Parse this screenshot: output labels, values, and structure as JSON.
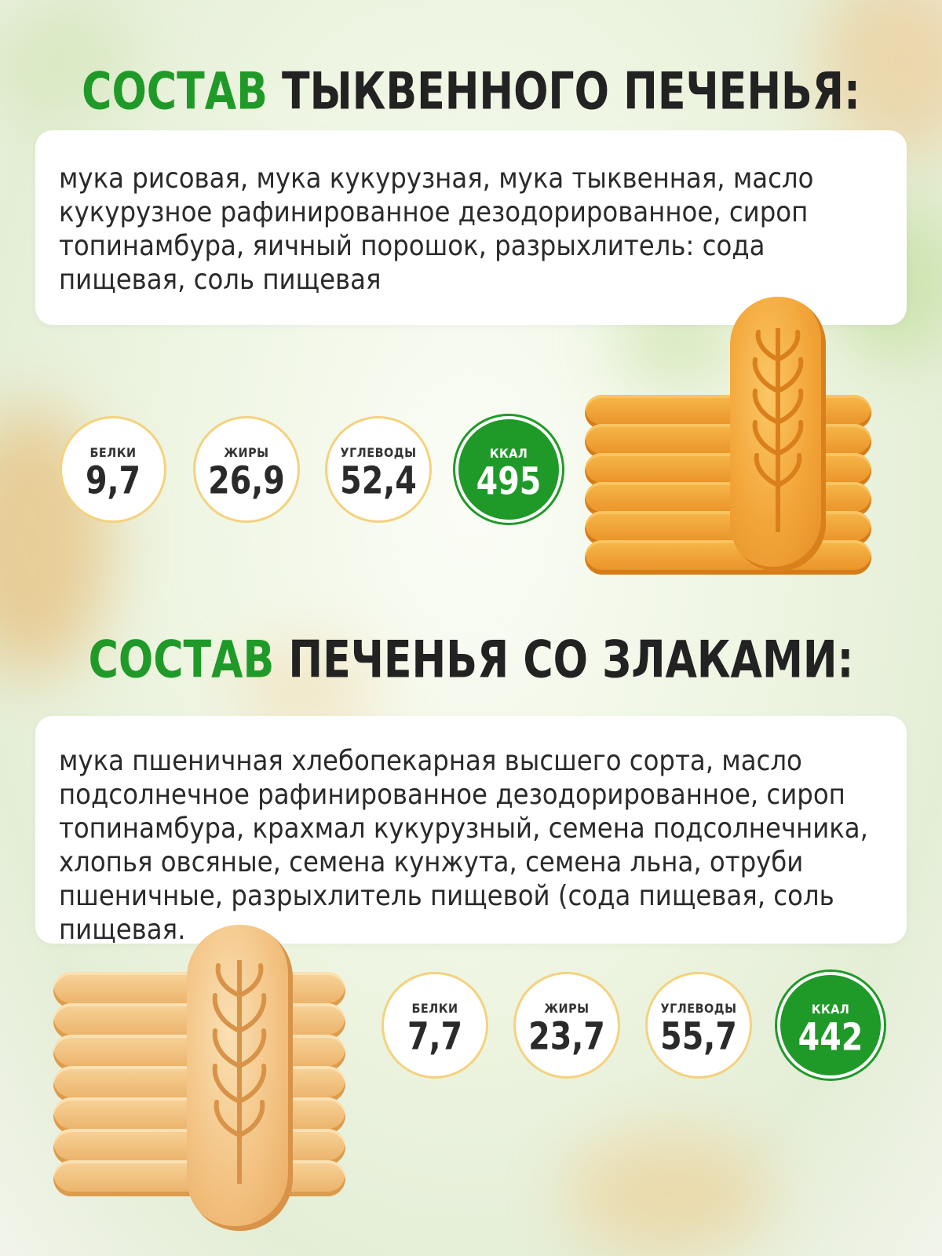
{
  "sections": [
    {
      "title_accent": "СОСТАВ",
      "title_rest": "ТЫКВЕННОГО ПЕЧЕНЬЯ:",
      "ingredients": "мука рисовая, мука кукурузная, мука тыквенная, масло кукурузное рафинированное дезодорированное, сироп топинамбура, яичный порошок, разрыхлитель: сода пищевая, соль пищевая",
      "nutrition": [
        {
          "label": "БЕЛКИ",
          "value": "9,7"
        },
        {
          "label": "ЖИРЫ",
          "value": "26,9"
        },
        {
          "label": "УГЛЕВОДЫ",
          "value": "52,4"
        },
        {
          "label": "ККАЛ",
          "value": "495"
        }
      ]
    },
    {
      "title_accent": "СОСТАВ",
      "title_rest": "ПЕЧЕНЬЯ СО ЗЛАКАМИ:",
      "ingredients": "мука пшеничная хлебопекарная высшего сорта, масло подсолнечное рафинированное дезодорированное, сироп топинамбура, крахмал кукурузный, семена подсолнечника, хлопья овсяные, семена кунжута, семена льна, отруби пшеничные, разрыхлитель пищевой (сода пищевая, соль пищевая.",
      "nutrition": [
        {
          "label": "БЕЛКИ",
          "value": "7,7"
        },
        {
          "label": "ЖИРЫ",
          "value": "23,7"
        },
        {
          "label": "УГЛЕВОДЫ",
          "value": "55,7"
        },
        {
          "label": "ККАЛ",
          "value": "442"
        }
      ]
    }
  ],
  "colors": {
    "accent": "#1f9a28",
    "circle_border": "#f4d27e",
    "text": "#2a2a2a"
  },
  "icons": [
    "wheat-ear-icon"
  ]
}
